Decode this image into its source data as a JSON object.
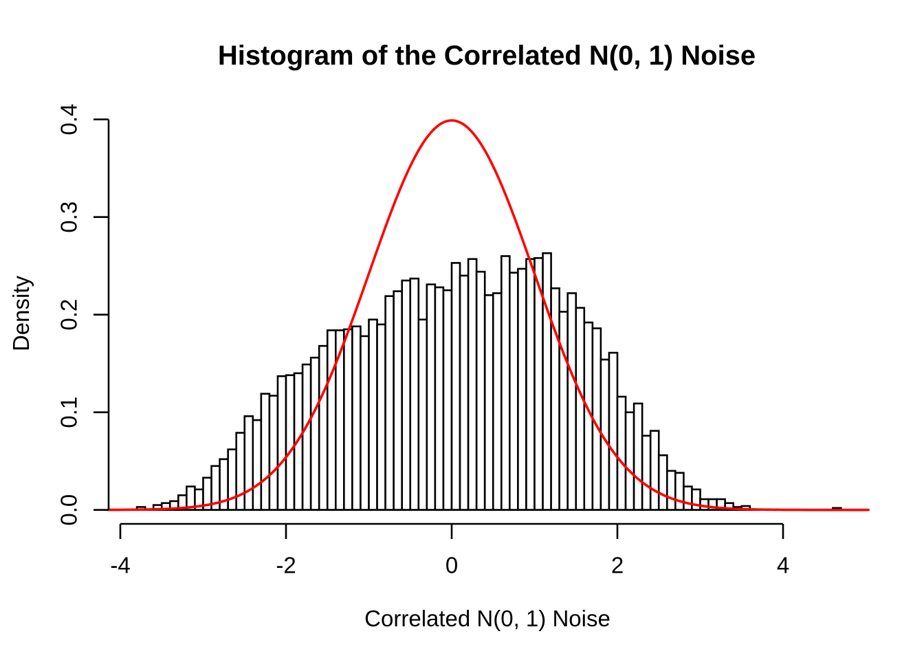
{
  "chart_data": {
    "type": "bar",
    "subtype": "histogram-with-density-curve",
    "title": "Histogram of the Correlated N(0, 1) Noise",
    "xlabel": "Correlated N(0, 1) Noise",
    "ylabel": "Density",
    "bin_start": -3.8,
    "bin_width": 0.1,
    "densities": [
      0.003,
      0.0,
      0.005,
      0.007,
      0.009,
      0.015,
      0.024,
      0.021,
      0.033,
      0.045,
      0.052,
      0.062,
      0.079,
      0.096,
      0.092,
      0.119,
      0.117,
      0.137,
      0.138,
      0.14,
      0.149,
      0.156,
      0.168,
      0.184,
      0.184,
      0.185,
      0.188,
      0.178,
      0.195,
      0.19,
      0.219,
      0.224,
      0.235,
      0.237,
      0.195,
      0.231,
      0.228,
      0.225,
      0.253,
      0.24,
      0.257,
      0.244,
      0.22,
      0.222,
      0.26,
      0.243,
      0.247,
      0.257,
      0.258,
      0.263,
      0.227,
      0.203,
      0.222,
      0.207,
      0.192,
      0.186,
      0.154,
      0.161,
      0.116,
      0.1,
      0.109,
      0.076,
      0.081,
      0.056,
      0.04,
      0.038,
      0.024,
      0.021,
      0.011,
      0.011,
      0.011,
      0.007,
      0.003,
      0.004,
      0.0,
      0.0,
      0.0,
      0.0,
      0.0,
      0.0,
      0.0,
      0.0,
      0.0,
      0.0,
      0.002
    ],
    "x_ticks": [
      -4,
      -2,
      0,
      2,
      4
    ],
    "x_tick_labels": [
      "-4",
      "-2",
      "0",
      "2",
      "4"
    ],
    "y_ticks": [
      0.0,
      0.1,
      0.2,
      0.3,
      0.4
    ],
    "y_tick_labels": [
      "0.0",
      "0.1",
      "0.2",
      "0.3",
      "0.4"
    ],
    "xlim": [
      -4.15,
      5.05
    ],
    "ylim": [
      0.0,
      0.4
    ],
    "grid": false,
    "legend": null,
    "bar_fill": "#FFFFFF",
    "bar_stroke": "#000000",
    "axis_color": "#000000",
    "overlay_curve": {
      "type": "normal_density",
      "mean": 0,
      "sd": 1,
      "peak_density": 0.399,
      "color": "#FF0000",
      "x_range": [
        -4.15,
        5.03
      ]
    }
  }
}
